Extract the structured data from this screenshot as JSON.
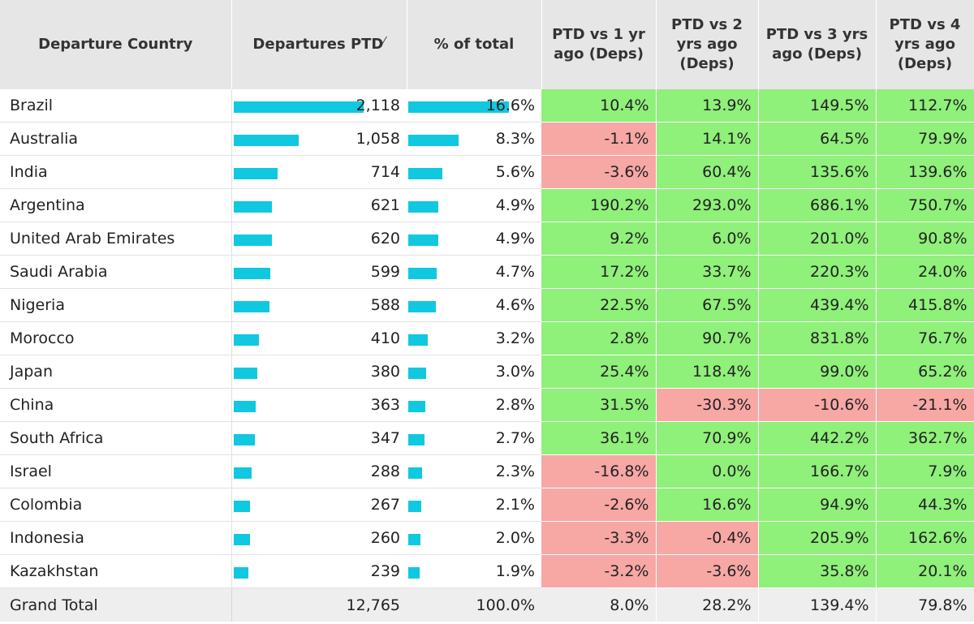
{
  "headers": {
    "country": "Departure Country",
    "departures": "Departures PTD",
    "share": "% of total",
    "ptd1": "PTD vs 1 yr ago (Deps)",
    "ptd2": "PTD vs 2 yrs ago (Deps)",
    "ptd3": "PTD vs 3 yrs ago (Deps)",
    "ptd4": "PTD vs 4 yrs ago (Deps)",
    "sort_icon": "sort-descending-icon",
    "sort_glyph": "⁄"
  },
  "colors": {
    "bar": "#10c8e0",
    "positive": "#8ff07a",
    "negative": "#f7a7a4",
    "header_bg": "#e6e6e6"
  },
  "rows": [
    {
      "country": "Brazil",
      "departures": "2,118",
      "dep_value": 2118,
      "share": "16.6%",
      "share_value": 16.6,
      "ptd1": "10.4%",
      "ptd2": "13.9%",
      "ptd3": "149.5%",
      "ptd4": "112.7%"
    },
    {
      "country": "Australia",
      "departures": "1,058",
      "dep_value": 1058,
      "share": "8.3%",
      "share_value": 8.3,
      "ptd1": "-1.1%",
      "ptd2": "14.1%",
      "ptd3": "64.5%",
      "ptd4": "79.9%"
    },
    {
      "country": "India",
      "departures": "714",
      "dep_value": 714,
      "share": "5.6%",
      "share_value": 5.6,
      "ptd1": "-3.6%",
      "ptd2": "60.4%",
      "ptd3": "135.6%",
      "ptd4": "139.6%"
    },
    {
      "country": "Argentina",
      "departures": "621",
      "dep_value": 621,
      "share": "4.9%",
      "share_value": 4.9,
      "ptd1": "190.2%",
      "ptd2": "293.0%",
      "ptd3": "686.1%",
      "ptd4": "750.7%"
    },
    {
      "country": "United Arab Emirates",
      "departures": "620",
      "dep_value": 620,
      "share": "4.9%",
      "share_value": 4.9,
      "ptd1": "9.2%",
      "ptd2": "6.0%",
      "ptd3": "201.0%",
      "ptd4": "90.8%"
    },
    {
      "country": "Saudi Arabia",
      "departures": "599",
      "dep_value": 599,
      "share": "4.7%",
      "share_value": 4.7,
      "ptd1": "17.2%",
      "ptd2": "33.7%",
      "ptd3": "220.3%",
      "ptd4": "24.0%"
    },
    {
      "country": "Nigeria",
      "departures": "588",
      "dep_value": 588,
      "share": "4.6%",
      "share_value": 4.6,
      "ptd1": "22.5%",
      "ptd2": "67.5%",
      "ptd3": "439.4%",
      "ptd4": "415.8%"
    },
    {
      "country": "Morocco",
      "departures": "410",
      "dep_value": 410,
      "share": "3.2%",
      "share_value": 3.2,
      "ptd1": "2.8%",
      "ptd2": "90.7%",
      "ptd3": "831.8%",
      "ptd4": "76.7%"
    },
    {
      "country": "Japan",
      "departures": "380",
      "dep_value": 380,
      "share": "3.0%",
      "share_value": 3.0,
      "ptd1": "25.4%",
      "ptd2": "118.4%",
      "ptd3": "99.0%",
      "ptd4": "65.2%"
    },
    {
      "country": "China",
      "departures": "363",
      "dep_value": 363,
      "share": "2.8%",
      "share_value": 2.8,
      "ptd1": "31.5%",
      "ptd2": "-30.3%",
      "ptd3": "-10.6%",
      "ptd4": "-21.1%"
    },
    {
      "country": "South Africa",
      "departures": "347",
      "dep_value": 347,
      "share": "2.7%",
      "share_value": 2.7,
      "ptd1": "36.1%",
      "ptd2": "70.9%",
      "ptd3": "442.2%",
      "ptd4": "362.7%"
    },
    {
      "country": "Israel",
      "departures": "288",
      "dep_value": 288,
      "share": "2.3%",
      "share_value": 2.3,
      "ptd1": "-16.8%",
      "ptd2": "0.0%",
      "ptd3": "166.7%",
      "ptd4": "7.9%"
    },
    {
      "country": "Colombia",
      "departures": "267",
      "dep_value": 267,
      "share": "2.1%",
      "share_value": 2.1,
      "ptd1": "-2.6%",
      "ptd2": "16.6%",
      "ptd3": "94.9%",
      "ptd4": "44.3%"
    },
    {
      "country": "Indonesia",
      "departures": "260",
      "dep_value": 260,
      "share": "2.0%",
      "share_value": 2.0,
      "ptd1": "-3.3%",
      "ptd2": "-0.4%",
      "ptd3": "205.9%",
      "ptd4": "162.6%"
    },
    {
      "country": "Kazakhstan",
      "departures": "239",
      "dep_value": 239,
      "share": "1.9%",
      "share_value": 1.9,
      "ptd1": "-3.2%",
      "ptd2": "-3.6%",
      "ptd3": "35.8%",
      "ptd4": "20.1%"
    }
  ],
  "total": {
    "label": "Grand Total",
    "departures": "12,765",
    "share": "100.0%",
    "ptd1": "8.0%",
    "ptd2": "28.2%",
    "ptd3": "139.4%",
    "ptd4": "79.8%"
  }
}
